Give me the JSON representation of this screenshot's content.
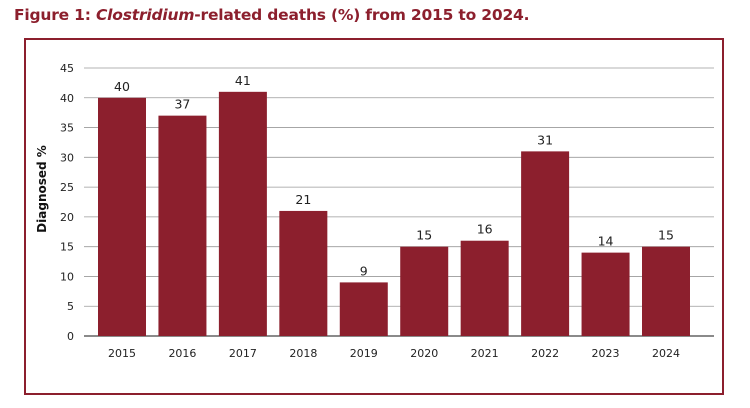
{
  "figure": {
    "title_prefix": "Figure 1: ",
    "title_italic": "Clostridium",
    "title_suffix": "-related deaths (%) from 2015 to 2024."
  },
  "chart_data": {
    "type": "bar",
    "title": "Figure 1: Clostridium-related deaths (%) from 2015 to 2024.",
    "xlabel": "",
    "ylabel": "Diagnosed %",
    "categories": [
      "2015",
      "2016",
      "2017",
      "2018",
      "2019",
      "2020",
      "2021",
      "2022",
      "2023",
      "2024"
    ],
    "values": [
      40,
      37,
      41,
      21,
      9,
      15,
      16,
      31,
      14,
      15
    ],
    "ylim": [
      0,
      45
    ],
    "yticks": [
      0,
      5,
      10,
      15,
      20,
      25,
      30,
      35,
      40,
      45
    ],
    "grid": true,
    "legend": "none",
    "bar_color": "#8c1f2d",
    "border_color": "#8c1f2d"
  }
}
